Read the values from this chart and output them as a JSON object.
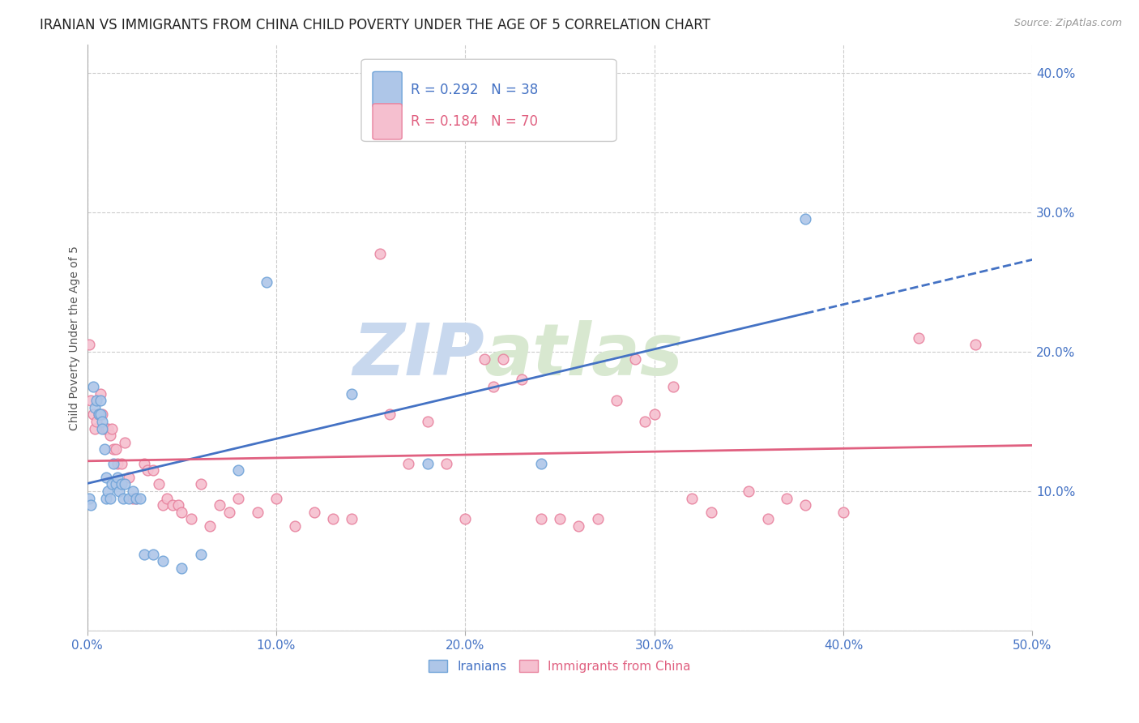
{
  "title": "IRANIAN VS IMMIGRANTS FROM CHINA CHILD POVERTY UNDER THE AGE OF 5 CORRELATION CHART",
  "source": "Source: ZipAtlas.com",
  "ylabel": "Child Poverty Under the Age of 5",
  "xlim": [
    0.0,
    0.5
  ],
  "ylim": [
    0.0,
    0.42
  ],
  "xticks": [
    0.0,
    0.1,
    0.2,
    0.3,
    0.4,
    0.5
  ],
  "xticklabels": [
    "0.0%",
    "10.0%",
    "20.0%",
    "30.0%",
    "40.0%",
    "50.0%"
  ],
  "yticks": [
    0.0,
    0.1,
    0.2,
    0.3,
    0.4
  ],
  "yticklabels": [
    "",
    "10.0%",
    "20.0%",
    "30.0%",
    "40.0%"
  ],
  "ytick_color": "#4472c4",
  "xtick_color": "#4472c4",
  "grid_color": "#cccccc",
  "background_color": "#ffffff",
  "iranians_color": "#aec6e8",
  "iranians_edge_color": "#6fa3d8",
  "china_color": "#f5bfcf",
  "china_edge_color": "#e8829e",
  "trend_iranian_color": "#4472c4",
  "trend_china_color": "#e06080",
  "legend_r_iranian": "R = 0.292",
  "legend_n_iranian": "N = 38",
  "legend_r_china": "R = 0.184",
  "legend_n_china": "N = 70",
  "iranians_x": [
    0.001,
    0.002,
    0.003,
    0.004,
    0.005,
    0.006,
    0.007,
    0.007,
    0.008,
    0.008,
    0.009,
    0.01,
    0.01,
    0.011,
    0.012,
    0.013,
    0.014,
    0.015,
    0.016,
    0.017,
    0.018,
    0.019,
    0.02,
    0.022,
    0.024,
    0.026,
    0.028,
    0.03,
    0.035,
    0.04,
    0.05,
    0.06,
    0.08,
    0.095,
    0.14,
    0.18,
    0.24,
    0.38
  ],
  "iranians_y": [
    0.095,
    0.09,
    0.175,
    0.16,
    0.165,
    0.155,
    0.155,
    0.165,
    0.15,
    0.145,
    0.13,
    0.095,
    0.11,
    0.1,
    0.095,
    0.105,
    0.12,
    0.105,
    0.11,
    0.1,
    0.105,
    0.095,
    0.105,
    0.095,
    0.1,
    0.095,
    0.095,
    0.055,
    0.055,
    0.05,
    0.045,
    0.055,
    0.115,
    0.25,
    0.17,
    0.12,
    0.12,
    0.295
  ],
  "china_x": [
    0.001,
    0.002,
    0.003,
    0.004,
    0.005,
    0.006,
    0.007,
    0.008,
    0.009,
    0.01,
    0.011,
    0.012,
    0.013,
    0.014,
    0.015,
    0.016,
    0.018,
    0.02,
    0.022,
    0.024,
    0.026,
    0.03,
    0.032,
    0.035,
    0.038,
    0.04,
    0.042,
    0.045,
    0.048,
    0.05,
    0.055,
    0.06,
    0.065,
    0.07,
    0.075,
    0.08,
    0.09,
    0.1,
    0.11,
    0.12,
    0.13,
    0.14,
    0.155,
    0.16,
    0.17,
    0.18,
    0.19,
    0.2,
    0.21,
    0.215,
    0.22,
    0.23,
    0.24,
    0.25,
    0.26,
    0.27,
    0.28,
    0.29,
    0.295,
    0.3,
    0.31,
    0.32,
    0.33,
    0.35,
    0.36,
    0.37,
    0.38,
    0.4,
    0.44,
    0.47
  ],
  "china_y": [
    0.205,
    0.165,
    0.155,
    0.145,
    0.15,
    0.155,
    0.17,
    0.155,
    0.145,
    0.145,
    0.145,
    0.14,
    0.145,
    0.13,
    0.13,
    0.12,
    0.12,
    0.135,
    0.11,
    0.095,
    0.095,
    0.12,
    0.115,
    0.115,
    0.105,
    0.09,
    0.095,
    0.09,
    0.09,
    0.085,
    0.08,
    0.105,
    0.075,
    0.09,
    0.085,
    0.095,
    0.085,
    0.095,
    0.075,
    0.085,
    0.08,
    0.08,
    0.27,
    0.155,
    0.12,
    0.15,
    0.12,
    0.08,
    0.195,
    0.175,
    0.195,
    0.18,
    0.08,
    0.08,
    0.075,
    0.08,
    0.165,
    0.195,
    0.15,
    0.155,
    0.175,
    0.095,
    0.085,
    0.1,
    0.08,
    0.095,
    0.09,
    0.085,
    0.21,
    0.205
  ],
  "watermark": "ZIPatlas",
  "watermark_color": "#d5e3f5",
  "marker_size": 85,
  "title_fontsize": 12,
  "axis_label_fontsize": 10,
  "tick_fontsize": 11,
  "legend_fontsize": 12
}
